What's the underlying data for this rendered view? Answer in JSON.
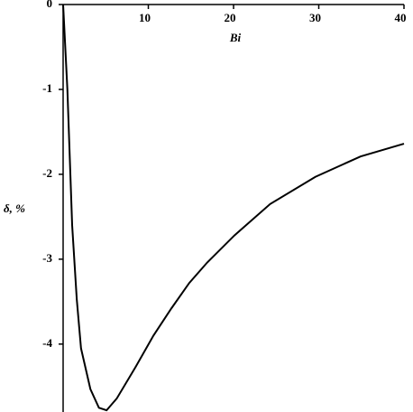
{
  "chart_data": {
    "type": "line",
    "x_label": "Bi",
    "y_label": "δ, %",
    "x": [
      0,
      0.5,
      1.06,
      1.6,
      2.1,
      3.2,
      4.2,
      5.1,
      6.3,
      8.5,
      10.6,
      12.7,
      14.8,
      16.9,
      20.1,
      24.3,
      29.6,
      34.9,
      40
    ],
    "series": [
      {
        "name": "δ",
        "color": "#000000",
        "values": [
          0,
          -1.0,
          -2.6,
          -3.47,
          -4.05,
          -4.53,
          -4.75,
          -4.78,
          -4.64,
          -4.27,
          -3.9,
          -3.58,
          -3.28,
          -3.04,
          -2.72,
          -2.35,
          -2.03,
          -1.79,
          -1.64
        ]
      }
    ],
    "xlim": [
      0,
      40
    ],
    "xticks": [
      10,
      20,
      30,
      40
    ],
    "ylim": [
      -4.8,
      0
    ],
    "yticks": [
      0,
      -1,
      -2,
      -3,
      -4
    ]
  }
}
